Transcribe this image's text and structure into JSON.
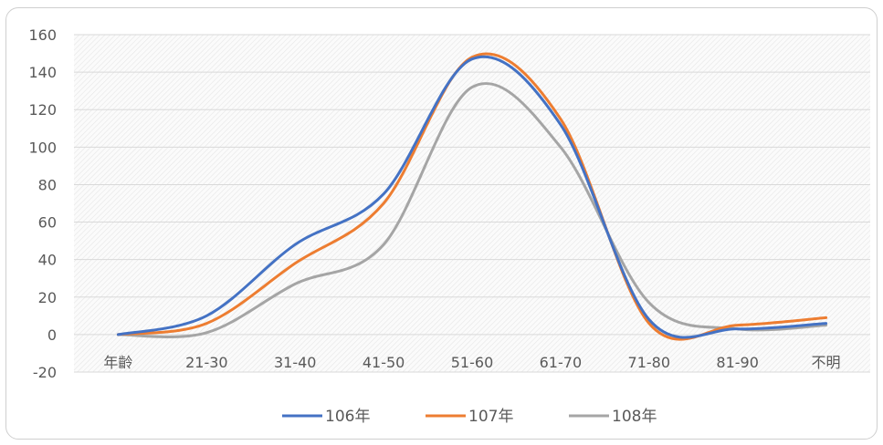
{
  "chart_data": {
    "type": "line",
    "categories": [
      "年齡",
      "21-30",
      "31-40",
      "41-50",
      "51-60",
      "61-70",
      "71-80",
      "81-90",
      "不明"
    ],
    "series": [
      {
        "name": "106年",
        "color": "#4472C4",
        "values": [
          0,
          10,
          48,
          75,
          147,
          112,
          8,
          3,
          6
        ]
      },
      {
        "name": "107年",
        "color": "#ED7D31",
        "values": [
          0,
          6,
          38,
          70,
          148,
          115,
          6,
          5,
          9
        ]
      },
      {
        "name": "108年",
        "color": "#A5A5A5",
        "values": [
          0,
          1,
          27,
          48,
          132,
          100,
          17,
          3,
          5
        ]
      }
    ],
    "title": "",
    "xlabel": "",
    "ylabel": "",
    "ylim": [
      -20,
      160
    ],
    "yticks": [
      160,
      140,
      120,
      100,
      80,
      60,
      40,
      20,
      0,
      -20
    ],
    "grid": true,
    "legend": "bottom"
  }
}
